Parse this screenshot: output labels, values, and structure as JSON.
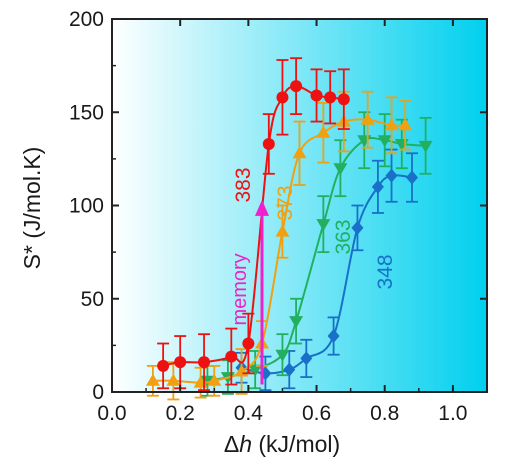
{
  "chart_data": {
    "type": "scatter",
    "xlabel_prefix": "Δ",
    "xlabel_var": "h",
    "xlabel_unit": " (kJ/mol)",
    "ylabel": "S* (J/mol.K)",
    "xlim": [
      0.0,
      1.1
    ],
    "ylim": [
      0,
      200
    ],
    "x_ticks": [
      0.0,
      0.2,
      0.4,
      0.6,
      0.8,
      1.0
    ],
    "x_tick_labels": [
      "0.0",
      "0.2",
      "0.4",
      "0.6",
      "0.8",
      "1.0"
    ],
    "y_ticks": [
      0,
      50,
      100,
      150,
      200
    ],
    "y_tick_labels": [
      "0",
      "50",
      "100",
      "150",
      "200"
    ],
    "grid": false,
    "background_gradient": {
      "from": "#ffffff",
      "to": "#00d0ee",
      "direction": "left-to-right"
    },
    "series": [
      {
        "name": "383",
        "color": "#ee1111",
        "marker": "circle",
        "points": [
          {
            "x": 0.15,
            "y": 14,
            "err": 12
          },
          {
            "x": 0.2,
            "y": 16,
            "err": 14
          },
          {
            "x": 0.27,
            "y": 16,
            "err": 15
          },
          {
            "x": 0.35,
            "y": 19,
            "err": 15
          },
          {
            "x": 0.4,
            "y": 26,
            "err": 16
          },
          {
            "x": 0.46,
            "y": 133,
            "err": 16
          },
          {
            "x": 0.5,
            "y": 158,
            "err": 20
          },
          {
            "x": 0.54,
            "y": 164,
            "err": 15
          },
          {
            "x": 0.6,
            "y": 159,
            "err": 14
          },
          {
            "x": 0.64,
            "y": 158,
            "err": 14
          },
          {
            "x": 0.68,
            "y": 157,
            "err": 16
          }
        ]
      },
      {
        "name": "373",
        "color": "#f0a010",
        "marker": "triangle-up",
        "points": [
          {
            "x": 0.12,
            "y": 6,
            "err": 8
          },
          {
            "x": 0.18,
            "y": 6,
            "err": 10
          },
          {
            "x": 0.26,
            "y": 5,
            "err": 8
          },
          {
            "x": 0.3,
            "y": 6,
            "err": 8
          },
          {
            "x": 0.38,
            "y": 11,
            "err": 12
          },
          {
            "x": 0.44,
            "y": 26,
            "err": 12
          },
          {
            "x": 0.5,
            "y": 86,
            "err": 14
          },
          {
            "x": 0.55,
            "y": 128,
            "err": 17
          },
          {
            "x": 0.62,
            "y": 139,
            "err": 16
          },
          {
            "x": 0.68,
            "y": 145,
            "err": 16
          },
          {
            "x": 0.75,
            "y": 146,
            "err": 15
          },
          {
            "x": 0.82,
            "y": 143,
            "err": 15
          },
          {
            "x": 0.86,
            "y": 143,
            "err": 13
          }
        ]
      },
      {
        "name": "363",
        "color": "#22b060",
        "marker": "triangle-down",
        "points": [
          {
            "x": 0.28,
            "y": 6,
            "err": 8
          },
          {
            "x": 0.34,
            "y": 8,
            "err": 9
          },
          {
            "x": 0.42,
            "y": 12,
            "err": 10
          },
          {
            "x": 0.5,
            "y": 20,
            "err": 11
          },
          {
            "x": 0.54,
            "y": 38,
            "err": 12
          },
          {
            "x": 0.62,
            "y": 90,
            "err": 15
          },
          {
            "x": 0.67,
            "y": 120,
            "err": 15
          },
          {
            "x": 0.74,
            "y": 135,
            "err": 15
          },
          {
            "x": 0.8,
            "y": 135,
            "err": 14
          },
          {
            "x": 0.85,
            "y": 133,
            "err": 13
          },
          {
            "x": 0.92,
            "y": 132,
            "err": 15
          }
        ]
      },
      {
        "name": "348",
        "color": "#1870c8",
        "marker": "diamond",
        "points": [
          {
            "x": 0.38,
            "y": 13,
            "err": 8
          },
          {
            "x": 0.45,
            "y": 10,
            "err": 9
          },
          {
            "x": 0.52,
            "y": 12,
            "err": 10
          },
          {
            "x": 0.57,
            "y": 18,
            "err": 10
          },
          {
            "x": 0.65,
            "y": 30,
            "err": 10
          },
          {
            "x": 0.72,
            "y": 88,
            "err": 12
          },
          {
            "x": 0.78,
            "y": 110,
            "err": 14
          },
          {
            "x": 0.82,
            "y": 116,
            "err": 14
          },
          {
            "x": 0.88,
            "y": 115,
            "err": 13
          }
        ]
      }
    ],
    "annotation": {
      "text": "memory",
      "color": "#ee22cc",
      "arrow": {
        "x": 0.44,
        "from_y": 4,
        "to_y": 103
      }
    }
  }
}
